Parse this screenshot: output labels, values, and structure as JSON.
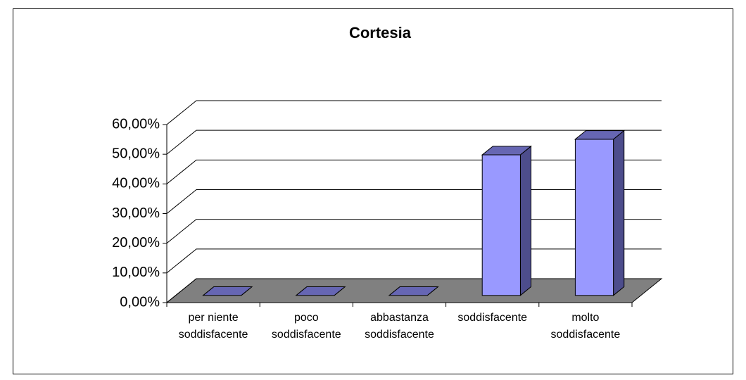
{
  "chart_data": {
    "type": "bar3d",
    "title": "Cortesia",
    "categories": [
      "per niente soddisfacente",
      "poco soddisfacente",
      "abbastanza soddisfacente",
      "soddisfacente",
      "molto soddisfacente"
    ],
    "values": [
      0,
      0,
      0,
      47.37,
      52.63
    ],
    "color": "#9999ff",
    "ylim": [
      0,
      60
    ],
    "yticks": [
      {
        "value": 0,
        "label": "0,00%"
      },
      {
        "value": 10,
        "label": "10,00%"
      },
      {
        "value": 20,
        "label": "20,00%"
      },
      {
        "value": 30,
        "label": "30,00%"
      },
      {
        "value": 40,
        "label": "40,00%"
      },
      {
        "value": 50,
        "label": "50,00%"
      },
      {
        "value": 60,
        "label": "60,00%"
      }
    ],
    "grid": true
  }
}
